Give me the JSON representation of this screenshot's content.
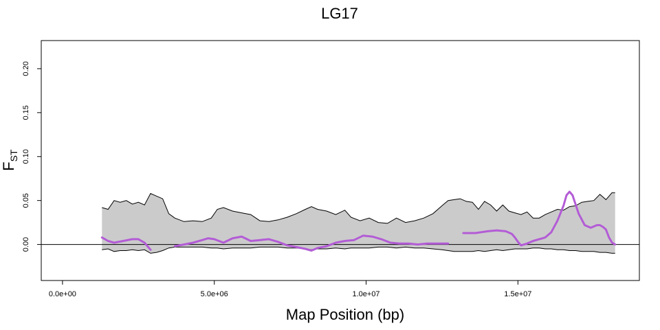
{
  "chart_data": {
    "type": "area",
    "title": "LG17",
    "xlabel": "Map Position (bp)",
    "ylabel_main": "F",
    "ylabel_sub": "ST",
    "xlim": [
      -700000,
      19000000
    ],
    "ylim": [
      -0.041,
      0.232
    ],
    "x_ticks": [
      0,
      5000000,
      10000000,
      15000000
    ],
    "x_tick_labels": [
      "0.0e+00",
      "5.0e+06",
      "1.0e+07",
      "1.5e+07"
    ],
    "y_ticks": [
      0.0,
      0.05,
      0.1,
      0.15,
      0.2
    ],
    "y_tick_labels": [
      "0.00",
      "0.05",
      "0.10",
      "0.15",
      "0.20"
    ],
    "hline_y": 0,
    "grid": false,
    "colors": {
      "band": "#cbcbcb",
      "band_edge": "#000000",
      "fst_line": "#b35cd6"
    },
    "band": {
      "x": [
        1300000,
        1500000,
        1700000,
        1900000,
        2100000,
        2300000,
        2500000,
        2700000,
        2900000,
        3100000,
        3300000,
        3500000,
        3700000,
        4000000,
        4300000,
        4600000,
        4900000,
        5100000,
        5300000,
        5600000,
        5900000,
        6200000,
        6500000,
        6800000,
        7100000,
        7400000,
        7700000,
        8000000,
        8200000,
        8400000,
        8700000,
        9000000,
        9300000,
        9500000,
        9800000,
        10100000,
        10400000,
        10700000,
        11000000,
        11300000,
        11600000,
        11900000,
        12200000,
        12500000,
        12700000,
        12900000,
        13100000,
        13300000,
        13500000,
        13700000,
        13900000,
        14100000,
        14300000,
        14500000,
        14700000,
        14900000,
        15100000,
        15300000,
        15500000,
        15700000,
        15900000,
        16100000,
        16300000,
        16500000,
        16700000,
        16900000,
        17100000,
        17300000,
        17500000,
        17700000,
        17900000,
        18100000,
        18200000
      ],
      "upper": [
        0.042,
        0.04,
        0.05,
        0.048,
        0.05,
        0.046,
        0.048,
        0.045,
        0.058,
        0.055,
        0.052,
        0.035,
        0.03,
        0.026,
        0.027,
        0.026,
        0.03,
        0.04,
        0.042,
        0.038,
        0.036,
        0.034,
        0.027,
        0.026,
        0.028,
        0.031,
        0.035,
        0.04,
        0.043,
        0.04,
        0.038,
        0.034,
        0.039,
        0.031,
        0.027,
        0.03,
        0.025,
        0.024,
        0.03,
        0.025,
        0.027,
        0.03,
        0.035,
        0.044,
        0.05,
        0.051,
        0.052,
        0.049,
        0.048,
        0.04,
        0.049,
        0.045,
        0.038,
        0.045,
        0.038,
        0.036,
        0.034,
        0.037,
        0.03,
        0.03,
        0.034,
        0.037,
        0.04,
        0.039,
        0.043,
        0.044,
        0.048,
        0.049,
        0.05,
        0.057,
        0.051,
        0.059,
        0.059
      ],
      "lower": [
        -0.006,
        -0.005,
        -0.008,
        -0.007,
        -0.007,
        -0.006,
        -0.007,
        -0.006,
        -0.01,
        -0.009,
        -0.007,
        -0.004,
        -0.003,
        -0.003,
        -0.003,
        -0.003,
        -0.004,
        -0.004,
        -0.005,
        -0.004,
        -0.004,
        -0.004,
        -0.003,
        -0.003,
        -0.003,
        -0.004,
        -0.004,
        -0.005,
        -0.006,
        -0.005,
        -0.005,
        -0.004,
        -0.005,
        -0.004,
        -0.004,
        -0.004,
        -0.003,
        -0.003,
        -0.004,
        -0.003,
        -0.004,
        -0.004,
        -0.005,
        -0.006,
        -0.007,
        -0.008,
        -0.008,
        -0.008,
        -0.008,
        -0.007,
        -0.008,
        -0.007,
        -0.006,
        -0.007,
        -0.006,
        -0.005,
        -0.005,
        -0.005,
        -0.004,
        -0.004,
        -0.005,
        -0.005,
        -0.006,
        -0.006,
        -0.007,
        -0.007,
        -0.008,
        -0.008,
        -0.008,
        -0.009,
        -0.009,
        -0.01,
        -0.01
      ]
    },
    "series": [
      {
        "x": [
          1300000,
          1500000,
          1700000,
          2000000,
          2300000,
          2500000,
          2700000,
          2900000
        ],
        "values": [
          0.008,
          0.004,
          0.002,
          0.004,
          0.006,
          0.006,
          0.002,
          -0.006
        ]
      },
      {
        "x": [
          3700000,
          4000000,
          4300000,
          4600000,
          4800000,
          5000000,
          5300000,
          5600000,
          5900000,
          6200000,
          6500000,
          6800000,
          7100000,
          7400000,
          7700000,
          8000000,
          8200000,
          8400000,
          8700000,
          9000000,
          9300000,
          9600000,
          9900000,
          10200000,
          10500000,
          10800000,
          11100000,
          11400000,
          11700000,
          12000000,
          12300000,
          12700000
        ],
        "values": [
          -0.002,
          0.0,
          0.002,
          0.005,
          0.007,
          0.006,
          0.002,
          0.007,
          0.009,
          0.004,
          0.005,
          0.006,
          0.003,
          -0.001,
          -0.003,
          -0.005,
          -0.007,
          -0.004,
          -0.002,
          0.002,
          0.004,
          0.005,
          0.01,
          0.009,
          0.006,
          0.002,
          0.001,
          0.001,
          0.0,
          0.001,
          0.001,
          0.001
        ]
      },
      {
        "x": [
          13200000,
          13600000,
          14000000,
          14300000,
          14600000,
          14800000,
          14900000,
          15000000,
          15100000,
          15300000,
          15500000,
          15700000,
          15900000,
          16100000,
          16300000,
          16500000,
          16600000,
          16700000,
          16800000,
          17000000,
          17200000,
          17400000,
          17600000,
          17700000,
          17800000,
          17900000,
          18000000,
          18100000,
          18200000
        ],
        "values": [
          0.013,
          0.013,
          0.015,
          0.016,
          0.015,
          0.012,
          0.008,
          0.003,
          -0.001,
          0.001,
          0.004,
          0.006,
          0.008,
          0.014,
          0.027,
          0.044,
          0.056,
          0.06,
          0.056,
          0.035,
          0.022,
          0.019,
          0.022,
          0.022,
          0.02,
          0.017,
          0.008,
          0.002,
          0.0
        ]
      }
    ]
  }
}
